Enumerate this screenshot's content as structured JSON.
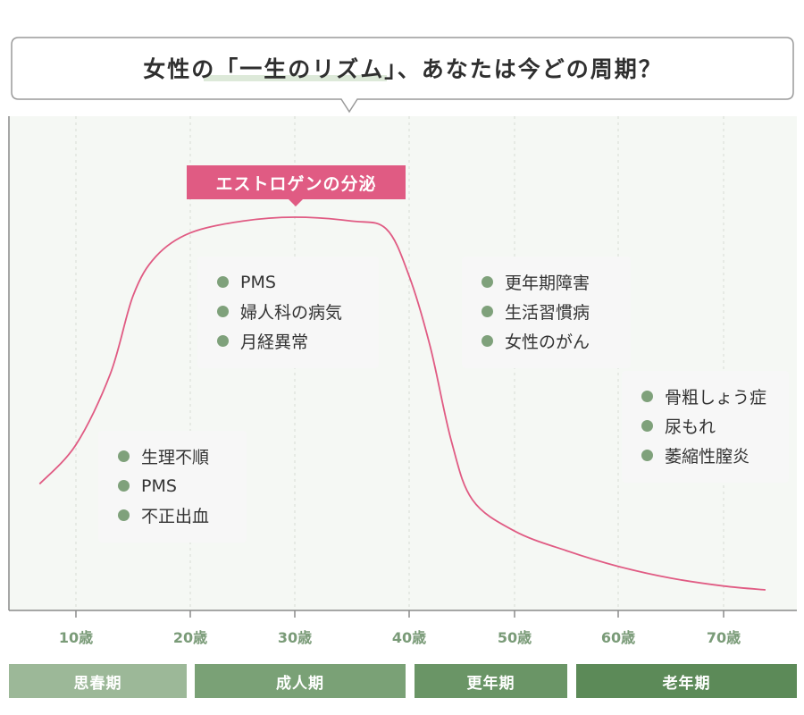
{
  "title": "女性の「一生のリズム」、あなたは今どの周期？",
  "chart_data": {
    "type": "line",
    "title": "女性の「一生のリズム」、あなたは今どの周期？",
    "xlabel": "",
    "ylabel": "",
    "x_tick_labels": [
      "10歳",
      "20歳",
      "30歳",
      "40歳",
      "50歳",
      "60歳",
      "70歳"
    ],
    "xlim": [
      5,
      77
    ],
    "ylim": [
      0,
      100
    ],
    "grid": "vertical dashed",
    "series": [
      {
        "name": "エストロゲンの分泌",
        "color": "#e05b83",
        "x": [
          6.3,
          10,
          13,
          15,
          17,
          20,
          25,
          30,
          35,
          38,
          40,
          42,
          44,
          46,
          50,
          55,
          60,
          65,
          70,
          74
        ],
        "y": [
          32,
          42,
          60,
          80,
          90,
          96,
          99,
          100,
          99,
          97,
          85,
          67,
          43,
          28,
          20,
          15,
          11,
          8,
          6,
          5
        ]
      }
    ],
    "annotations": [
      {
        "group": "puberty",
        "items": [
          "生理不順",
          "PMS",
          "不正出血"
        ]
      },
      {
        "group": "adult",
        "items": [
          "PMS",
          "婦人科の病気",
          "月経異常"
        ]
      },
      {
        "group": "menopause",
        "items": [
          "更年期障害",
          "生活習慣病",
          "女性のがん"
        ]
      },
      {
        "group": "senior",
        "items": [
          "骨粗しょう症",
          "尿もれ",
          "萎縮性膣炎"
        ]
      }
    ],
    "stages": [
      {
        "label": "思春期",
        "color": "#9cb898"
      },
      {
        "label": "成人期",
        "color": "#7aa176"
      },
      {
        "label": "更年期",
        "color": "#6a9566"
      },
      {
        "label": "老年期",
        "color": "#5c8a58"
      }
    ]
  },
  "colors": {
    "curve": "#e05b83",
    "dot": "#7fa17b",
    "plot_bg": "#f5f8f4",
    "axis_label": "#7a9b78"
  }
}
